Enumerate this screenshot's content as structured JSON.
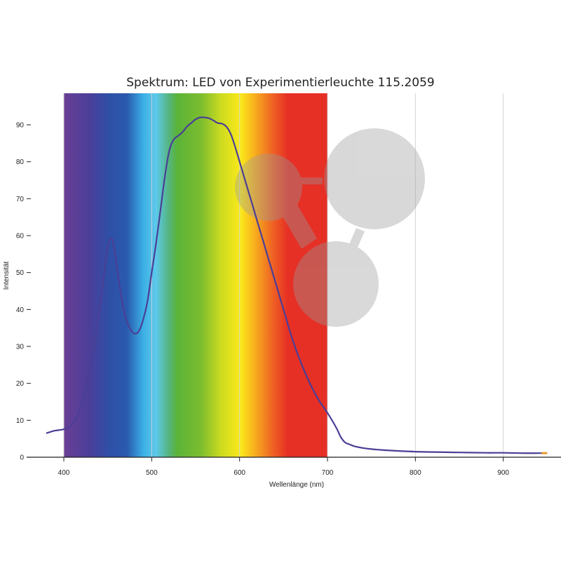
{
  "chart_data": {
    "type": "line",
    "title": "Spektrum: LED von Experimentierleuchte 115.2059",
    "xlabel": "Wellenlänge (nm)",
    "ylabel": "Intensität",
    "xlim": [
      350,
      960
    ],
    "ylim": [
      0,
      97
    ],
    "xticks": [
      400,
      500,
      600,
      700,
      800,
      900
    ],
    "yticks": [
      0,
      10,
      20,
      30,
      40,
      50,
      60,
      70,
      80,
      90
    ],
    "grid": "vertical",
    "background": "visible spectrum 400–700 nm",
    "series": [
      {
        "color": "#4a3f96",
        "x": [
          380,
          390,
          400,
          410,
          420,
          430,
          440,
          445,
          450,
          455,
          460,
          465,
          470,
          475,
          480,
          485,
          490,
          495,
          500,
          505,
          510,
          515,
          520,
          525,
          530,
          535,
          540,
          545,
          550,
          555,
          560,
          565,
          570,
          575,
          580,
          585,
          590,
          595,
          600,
          610,
          620,
          630,
          640,
          650,
          660,
          670,
          680,
          690,
          700,
          710,
          715,
          720,
          725,
          730,
          740,
          750,
          760,
          780,
          800,
          820,
          850,
          880,
          900,
          920,
          940,
          950
        ],
        "y": [
          6.5,
          7.2,
          7.6,
          9,
          14,
          24,
          39,
          48,
          57,
          59,
          52,
          44,
          38,
          35,
          33.5,
          34,
          37,
          42,
          50,
          58,
          67,
          76,
          83,
          86,
          87,
          88,
          89.5,
          90.5,
          91.5,
          92,
          92,
          91.8,
          91.2,
          90.5,
          90.3,
          89.5,
          87.5,
          84,
          80,
          72,
          64,
          56,
          48,
          40,
          32,
          25.5,
          20,
          15.5,
          12,
          8,
          5.5,
          4,
          3.5,
          3,
          2.5,
          2.2,
          2,
          1.7,
          1.5,
          1.4,
          1.3,
          1.2,
          1.2,
          1.1,
          1.1,
          1.1
        ]
      }
    ]
  }
}
